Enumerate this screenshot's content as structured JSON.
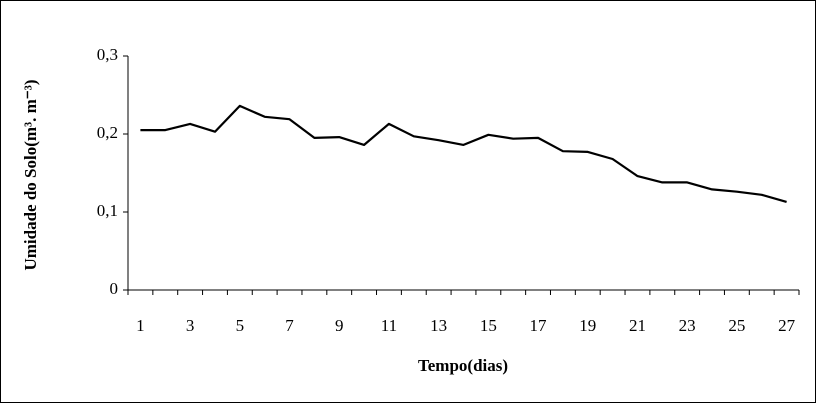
{
  "chart_data": {
    "type": "line",
    "xlabel": "Tempo(dias)",
    "ylabel": "Umidade do Solo(m³. m⁻³)",
    "categories": [
      "1",
      null,
      "3",
      null,
      "5",
      null,
      "7",
      null,
      "9",
      null,
      "11",
      null,
      "13",
      null,
      "15",
      null,
      "17",
      null,
      "19",
      null,
      "21",
      null,
      "23",
      null,
      "25",
      null,
      "27"
    ],
    "series": [
      {
        "name": "Umidade",
        "color": "#000000",
        "values": [
          0.205,
          0.205,
          0.213,
          0.203,
          0.236,
          0.222,
          0.219,
          0.195,
          0.196,
          0.186,
          0.213,
          0.197,
          0.192,
          0.186,
          0.199,
          0.194,
          0.195,
          0.178,
          0.177,
          0.168,
          0.146,
          0.138,
          0.138,
          0.129,
          0.126,
          0.122,
          0.113
        ]
      }
    ],
    "ylim": [
      0,
      0.3
    ],
    "yticks": [
      0,
      {
        "value": 0.1,
        "label": "0,1"
      },
      {
        "value": 0.2,
        "label": "0,2"
      },
      {
        "value": 0.3,
        "label": "0,3"
      }
    ],
    "grid": false
  }
}
